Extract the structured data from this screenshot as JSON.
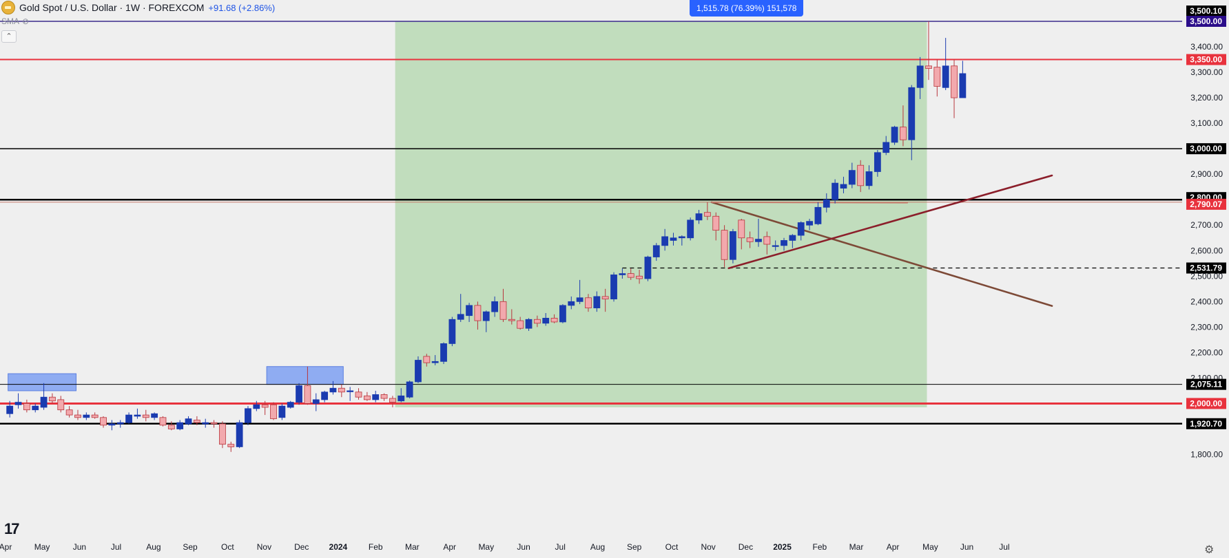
{
  "header": {
    "title": "Gold Spot / U.S. Dollar · 1W · FOREXCOM",
    "change": "+91.68 (+2.86%)",
    "indicator": "SMA",
    "collapse_icon": "chevron-up-icon"
  },
  "measure_label": "1,515.78 (76.39%) 151,578",
  "colors": {
    "background": "#efefef",
    "up": "#1a3bb0",
    "down": "#f2a9ad",
    "range_fill": "#bedbb9",
    "level_red": "#e8323d",
    "trend_brown": "#7d4a37",
    "trend_red": "#8b1e2a",
    "zone_blue": "#7ea0f2"
  },
  "chart_data": {
    "type": "candlestick",
    "title": "Gold Spot / U.S. Dollar · 1W · FOREXCOM",
    "yaxis": {
      "range": [
        1730,
        3545
      ],
      "ticks": [
        "1,800.00",
        "2,100.00",
        "2,200.00",
        "2,300.00",
        "2,400.00",
        "2,500.00",
        "2,600.00",
        "2,700.00",
        "2,900.00",
        "3,100.00",
        "3,200.00",
        "3,300.00",
        "3,400.00"
      ],
      "tick_values": [
        1800,
        2100,
        2200,
        2300,
        2400,
        2500,
        2600,
        2700,
        2900,
        3100,
        3200,
        3300,
        3400
      ]
    },
    "xaxis": {
      "labels": [
        "Apr",
        "May",
        "Jun",
        "Jul",
        "Aug",
        "Sep",
        "Oct",
        "Nov",
        "Dec",
        "2024",
        "Feb",
        "Mar",
        "Apr",
        "May",
        "Jun",
        "Jul",
        "Aug",
        "Sep",
        "Oct",
        "Nov",
        "Dec",
        "2025",
        "Feb",
        "Mar",
        "Apr",
        "May",
        "Jun",
        "Jul"
      ],
      "label_weeks": [
        0,
        4.3,
        8.7,
        13,
        17.4,
        21.7,
        26.1,
        30.4,
        34.8,
        39.1,
        43.5,
        47.8,
        52.2,
        56.5,
        60.9,
        65.2,
        69.6,
        73.9,
        78.3,
        82.6,
        87,
        91.3,
        95.7,
        100,
        104.3,
        108.7,
        113,
        117.4
      ],
      "bold_labels": [
        "2024",
        "2025"
      ]
    },
    "levels": [
      {
        "price": 3500,
        "label": "3,500.00",
        "color": "#2b0d8a",
        "line": "#3a2a8c",
        "width": 1.5
      },
      {
        "price": 3350,
        "label": "3,350.00",
        "color": "#e8323d",
        "line": "#e8323d",
        "width": 2
      },
      {
        "price": 3000,
        "label": "3,000.00",
        "color": "#000000",
        "line": "#000000",
        "width": 1.5
      },
      {
        "price": 2800,
        "label": "2,800.00",
        "color": "#000000",
        "line": "#000000",
        "width": 2.5
      },
      {
        "price": 2790.07,
        "label": "2,790.07",
        "color": "#e8323d",
        "line": "#c57a6b",
        "width": 1
      },
      {
        "price": 2531.79,
        "label": "2,531.79",
        "color": "#000000",
        "line": "#000000",
        "width": 1.2,
        "dashed": true
      },
      {
        "price": 2075.11,
        "label": "2,075.11",
        "color": "#000000",
        "line": "#000000",
        "width": 1
      },
      {
        "price": 2000,
        "label": "2,000.00",
        "color": "#e8323d",
        "line": "#e8323d",
        "width": 3
      },
      {
        "price": 1920.7,
        "label": "1,920.70",
        "color": "#000000",
        "line": "#000000",
        "width": 2.5
      }
    ],
    "top_label": "3,500.10",
    "range_box": {
      "from_week": 45.8,
      "to_week": 108.3,
      "low": 1985,
      "high": 3500
    },
    "zones": [
      {
        "from_week": 0.3,
        "to_week": 8.3,
        "low": 2050,
        "high": 2117
      },
      {
        "from_week": 30.7,
        "to_week": 39.7,
        "low": 2075,
        "high": 2145
      }
    ],
    "trendlines": [
      {
        "from": [
          83,
          2790
        ],
        "to": [
          123,
          2383
        ],
        "color": "#7d4a37"
      },
      {
        "from": [
          85,
          2531
        ],
        "to": [
          123,
          2895
        ],
        "color": "#8b1e2a"
      },
      {
        "from": [
          83,
          2790
        ],
        "to": [
          106,
          2788
        ],
        "color": "#c57a6b"
      }
    ],
    "candles": [
      {
        "o": 1960,
        "h": 2010,
        "l": 1945,
        "c": 1990
      },
      {
        "o": 1995,
        "h": 2040,
        "l": 1980,
        "c": 2005
      },
      {
        "o": 2000,
        "h": 2015,
        "l": 1965,
        "c": 1975
      },
      {
        "o": 1975,
        "h": 2000,
        "l": 1965,
        "c": 1990
      },
      {
        "o": 1985,
        "h": 2080,
        "l": 1975,
        "c": 2025
      },
      {
        "o": 2025,
        "h": 2040,
        "l": 2000,
        "c": 2010
      },
      {
        "o": 2015,
        "h": 2030,
        "l": 1965,
        "c": 1975
      },
      {
        "o": 1975,
        "h": 1990,
        "l": 1945,
        "c": 1955
      },
      {
        "o": 1955,
        "h": 1975,
        "l": 1935,
        "c": 1945
      },
      {
        "o": 1945,
        "h": 1965,
        "l": 1935,
        "c": 1955
      },
      {
        "o": 1955,
        "h": 1965,
        "l": 1940,
        "c": 1945
      },
      {
        "o": 1945,
        "h": 1950,
        "l": 1905,
        "c": 1915
      },
      {
        "o": 1915,
        "h": 1935,
        "l": 1895,
        "c": 1920
      },
      {
        "o": 1920,
        "h": 1935,
        "l": 1905,
        "c": 1925
      },
      {
        "o": 1925,
        "h": 1965,
        "l": 1920,
        "c": 1955
      },
      {
        "o": 1950,
        "h": 1980,
        "l": 1940,
        "c": 1955
      },
      {
        "o": 1955,
        "h": 1975,
        "l": 1930,
        "c": 1945
      },
      {
        "o": 1945,
        "h": 1965,
        "l": 1935,
        "c": 1960
      },
      {
        "o": 1945,
        "h": 1950,
        "l": 1910,
        "c": 1915
      },
      {
        "o": 1915,
        "h": 1930,
        "l": 1895,
        "c": 1900
      },
      {
        "o": 1900,
        "h": 1935,
        "l": 1895,
        "c": 1925
      },
      {
        "o": 1920,
        "h": 1950,
        "l": 1915,
        "c": 1940
      },
      {
        "o": 1935,
        "h": 1950,
        "l": 1915,
        "c": 1925
      },
      {
        "o": 1920,
        "h": 1940,
        "l": 1905,
        "c": 1925
      },
      {
        "o": 1925,
        "h": 1935,
        "l": 1905,
        "c": 1920
      },
      {
        "o": 1920,
        "h": 1930,
        "l": 1825,
        "c": 1840
      },
      {
        "o": 1840,
        "h": 1850,
        "l": 1810,
        "c": 1830
      },
      {
        "o": 1830,
        "h": 1935,
        "l": 1825,
        "c": 1925
      },
      {
        "o": 1925,
        "h": 1990,
        "l": 1915,
        "c": 1980
      },
      {
        "o": 1980,
        "h": 2010,
        "l": 1970,
        "c": 1995
      },
      {
        "o": 1995,
        "h": 2010,
        "l": 1955,
        "c": 1985
      },
      {
        "o": 1995,
        "h": 2005,
        "l": 1935,
        "c": 1940
      },
      {
        "o": 1945,
        "h": 2000,
        "l": 1935,
        "c": 1990
      },
      {
        "o": 1985,
        "h": 2010,
        "l": 1980,
        "c": 2005
      },
      {
        "o": 2005,
        "h": 2080,
        "l": 1995,
        "c": 2070
      },
      {
        "o": 2070,
        "h": 2145,
        "l": 1995,
        "c": 2000
      },
      {
        "o": 2000,
        "h": 2040,
        "l": 1970,
        "c": 2015
      },
      {
        "o": 2015,
        "h": 2050,
        "l": 2005,
        "c": 2045
      },
      {
        "o": 2045,
        "h": 2088,
        "l": 2035,
        "c": 2060
      },
      {
        "o": 2060,
        "h": 2075,
        "l": 2025,
        "c": 2045
      },
      {
        "o": 2050,
        "h": 2065,
        "l": 2010,
        "c": 2050
      },
      {
        "o": 2045,
        "h": 2060,
        "l": 2015,
        "c": 2025
      },
      {
        "o": 2030,
        "h": 2045,
        "l": 2010,
        "c": 2015
      },
      {
        "o": 2015,
        "h": 2050,
        "l": 2005,
        "c": 2035
      },
      {
        "o": 2035,
        "h": 2040,
        "l": 2010,
        "c": 2020
      },
      {
        "o": 2020,
        "h": 2030,
        "l": 1985,
        "c": 2005
      },
      {
        "o": 2010,
        "h": 2060,
        "l": 2005,
        "c": 2030
      },
      {
        "o": 2025,
        "h": 2090,
        "l": 2020,
        "c": 2085
      },
      {
        "o": 2085,
        "h": 2185,
        "l": 2080,
        "c": 2170
      },
      {
        "o": 2185,
        "h": 2195,
        "l": 2145,
        "c": 2160
      },
      {
        "o": 2160,
        "h": 2190,
        "l": 2150,
        "c": 2165
      },
      {
        "o": 2165,
        "h": 2240,
        "l": 2155,
        "c": 2235
      },
      {
        "o": 2235,
        "h": 2340,
        "l": 2225,
        "c": 2330
      },
      {
        "o": 2330,
        "h": 2430,
        "l": 2320,
        "c": 2350
      },
      {
        "o": 2345,
        "h": 2395,
        "l": 2320,
        "c": 2385
      },
      {
        "o": 2385,
        "h": 2400,
        "l": 2290,
        "c": 2325
      },
      {
        "o": 2325,
        "h": 2365,
        "l": 2280,
        "c": 2360
      },
      {
        "o": 2360,
        "h": 2420,
        "l": 2340,
        "c": 2400
      },
      {
        "o": 2400,
        "h": 2450,
        "l": 2320,
        "c": 2330
      },
      {
        "o": 2330,
        "h": 2370,
        "l": 2310,
        "c": 2325
      },
      {
        "o": 2325,
        "h": 2340,
        "l": 2290,
        "c": 2295
      },
      {
        "o": 2295,
        "h": 2335,
        "l": 2285,
        "c": 2330
      },
      {
        "o": 2330,
        "h": 2345,
        "l": 2300,
        "c": 2315
      },
      {
        "o": 2315,
        "h": 2355,
        "l": 2305,
        "c": 2335
      },
      {
        "o": 2335,
        "h": 2350,
        "l": 2315,
        "c": 2320
      },
      {
        "o": 2320,
        "h": 2390,
        "l": 2315,
        "c": 2385
      },
      {
        "o": 2385,
        "h": 2420,
        "l": 2370,
        "c": 2400
      },
      {
        "o": 2400,
        "h": 2485,
        "l": 2390,
        "c": 2415
      },
      {
        "o": 2415,
        "h": 2430,
        "l": 2360,
        "c": 2375
      },
      {
        "o": 2375,
        "h": 2440,
        "l": 2360,
        "c": 2420
      },
      {
        "o": 2420,
        "h": 2450,
        "l": 2360,
        "c": 2410
      },
      {
        "o": 2410,
        "h": 2515,
        "l": 2400,
        "c": 2505
      },
      {
        "o": 2505,
        "h": 2530,
        "l": 2490,
        "c": 2510
      },
      {
        "o": 2510,
        "h": 2530,
        "l": 2485,
        "c": 2495
      },
      {
        "o": 2500,
        "h": 2525,
        "l": 2470,
        "c": 2490
      },
      {
        "o": 2490,
        "h": 2580,
        "l": 2480,
        "c": 2575
      },
      {
        "o": 2575,
        "h": 2630,
        "l": 2560,
        "c": 2620
      },
      {
        "o": 2620,
        "h": 2685,
        "l": 2600,
        "c": 2655
      },
      {
        "o": 2640,
        "h": 2670,
        "l": 2620,
        "c": 2650
      },
      {
        "o": 2650,
        "h": 2660,
        "l": 2620,
        "c": 2655
      },
      {
        "o": 2650,
        "h": 2730,
        "l": 2640,
        "c": 2720
      },
      {
        "o": 2720,
        "h": 2760,
        "l": 2705,
        "c": 2745
      },
      {
        "o": 2750,
        "h": 2790,
        "l": 2720,
        "c": 2735
      },
      {
        "o": 2735,
        "h": 2750,
        "l": 2640,
        "c": 2680
      },
      {
        "o": 2680,
        "h": 2700,
        "l": 2535,
        "c": 2565
      },
      {
        "o": 2565,
        "h": 2685,
        "l": 2550,
        "c": 2675
      },
      {
        "o": 2720,
        "h": 2725,
        "l": 2605,
        "c": 2650
      },
      {
        "o": 2650,
        "h": 2675,
        "l": 2610,
        "c": 2635
      },
      {
        "o": 2635,
        "h": 2725,
        "l": 2615,
        "c": 2645
      },
      {
        "o": 2655,
        "h": 2675,
        "l": 2585,
        "c": 2625
      },
      {
        "o": 2620,
        "h": 2640,
        "l": 2600,
        "c": 2620
      },
      {
        "o": 2620,
        "h": 2650,
        "l": 2600,
        "c": 2640
      },
      {
        "o": 2640,
        "h": 2665,
        "l": 2610,
        "c": 2660
      },
      {
        "o": 2660,
        "h": 2715,
        "l": 2640,
        "c": 2710
      },
      {
        "o": 2700,
        "h": 2725,
        "l": 2680,
        "c": 2715
      },
      {
        "o": 2705,
        "h": 2790,
        "l": 2700,
        "c": 2770
      },
      {
        "o": 2770,
        "h": 2825,
        "l": 2750,
        "c": 2800
      },
      {
        "o": 2800,
        "h": 2880,
        "l": 2785,
        "c": 2865
      },
      {
        "o": 2845,
        "h": 2890,
        "l": 2825,
        "c": 2860
      },
      {
        "o": 2860,
        "h": 2945,
        "l": 2845,
        "c": 2915
      },
      {
        "o": 2935,
        "h": 2955,
        "l": 2830,
        "c": 2855
      },
      {
        "o": 2855,
        "h": 2935,
        "l": 2840,
        "c": 2910
      },
      {
        "o": 2910,
        "h": 2995,
        "l": 2890,
        "c": 2985
      },
      {
        "o": 2985,
        "h": 3050,
        "l": 2975,
        "c": 3025
      },
      {
        "o": 3025,
        "h": 3090,
        "l": 3015,
        "c": 3085
      },
      {
        "o": 3085,
        "h": 3170,
        "l": 3010,
        "c": 3035
      },
      {
        "o": 3035,
        "h": 3250,
        "l": 2955,
        "c": 3240
      },
      {
        "o": 3240,
        "h": 3360,
        "l": 3195,
        "c": 3325
      },
      {
        "o": 3325,
        "h": 3500,
        "l": 3270,
        "c": 3315
      },
      {
        "o": 3320,
        "h": 3350,
        "l": 3205,
        "c": 3245
      },
      {
        "o": 3240,
        "h": 3435,
        "l": 3230,
        "c": 3325
      },
      {
        "o": 3325,
        "h": 3350,
        "l": 3120,
        "c": 3200
      },
      {
        "o": 3200,
        "h": 3345,
        "l": 3200,
        "c": 3295
      }
    ]
  }
}
